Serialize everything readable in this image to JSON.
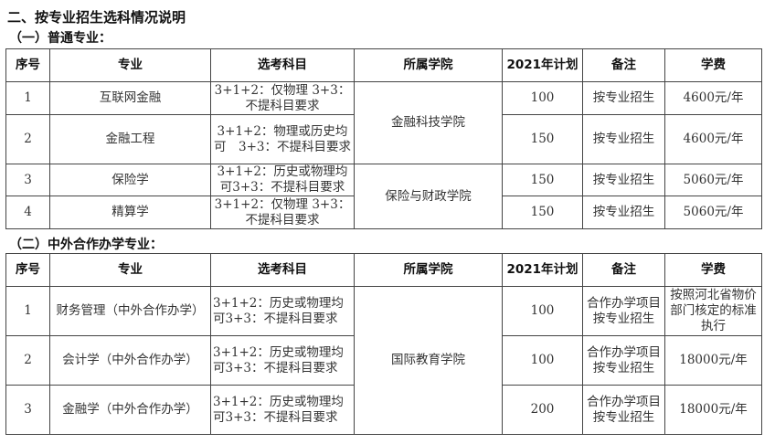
{
  "title": "二、按专业招生选科情况说明",
  "section1": {
    "label": "（一）普通专业：",
    "headers": [
      "序号",
      "专业",
      "选考科目",
      "所属学院",
      "2021年计划",
      "备注",
      "学费"
    ],
    "rows": [
      {
        "no": "1",
        "major": "互联网金融",
        "subjects": "3+1+2：仅物理 3+3：不提科目要求",
        "college": "金融科技学院",
        "plan": "100",
        "note": "按专业招生",
        "fee": "4600元/年"
      },
      {
        "no": "2",
        "major": "金融工程",
        "subjects": "3+1+2：物理或历史均可　3+3：不提科目要求",
        "plan": "150",
        "note": "按专业招生",
        "fee": "4600元/年"
      },
      {
        "no": "3",
        "major": "保险学",
        "subjects": "3+1+2：历史或物理均可3+3：不提科目要求",
        "college": "保险与财政学院",
        "plan": "150",
        "note": "按专业招生",
        "fee": "5060元/年"
      },
      {
        "no": "4",
        "major": "精算学",
        "subjects": "3+1+2：仅物理 3+3：不提科目要求",
        "plan": "150",
        "note": "按专业招生",
        "fee": "5060元/年"
      }
    ]
  },
  "section2": {
    "label": "（二）中外合作办学专业：",
    "headers": [
      "序号",
      "专业",
      "选考科目",
      "所属学院",
      "2021年计划",
      "备注",
      "学费"
    ],
    "rows": [
      {
        "no": "1",
        "major": "财务管理（中外合作办学）",
        "subjects": "3+1+2：历史或物理均可3+3：不提科目要求",
        "college": "国际教育学院",
        "plan": "100",
        "note": "合作办学项目 按专业招生",
        "fee": "按照河北省物价部门核定的标准执行"
      },
      {
        "no": "2",
        "major": "会计学（中外合作办学）",
        "subjects": "3+1+2：历史或物理均可3+3：不提科目要求",
        "plan": "100",
        "note": "合作办学项目 按专业招生",
        "fee": "18000元/年"
      },
      {
        "no": "3",
        "major": "金融学（中外合作办学）",
        "subjects": "3+1+2：历史或物理均可3+3：不提科目要求",
        "plan": "200",
        "note": "合作办学项目 按专业招生",
        "fee": "18000元/年"
      }
    ]
  }
}
